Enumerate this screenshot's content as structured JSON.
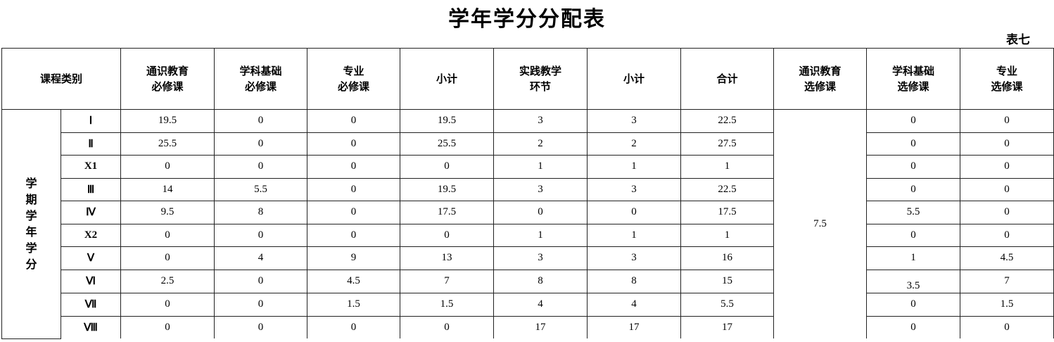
{
  "title": "学年学分分配表",
  "table_tag": "表七",
  "header": {
    "category": "课程类别",
    "columns": [
      [
        "通识教育",
        "必修课"
      ],
      [
        "学科基础",
        "必修课"
      ],
      [
        "专业",
        "必修课"
      ],
      [
        "小计"
      ],
      [
        "实践教学",
        "环节"
      ],
      [
        "小计"
      ],
      [
        "合计"
      ],
      [
        "通识教育",
        "选修课"
      ],
      [
        "学科基础",
        "选修课"
      ],
      [
        "专业",
        "选修课"
      ]
    ]
  },
  "side_label": [
    "学",
    "期",
    "学",
    "年",
    "学",
    "分"
  ],
  "general_elective_total": "7.5",
  "rows": [
    {
      "term": "Ⅰ",
      "values": [
        "19.5",
        "0",
        "0",
        "19.5",
        "3",
        "3",
        "22.5"
      ],
      "electives": [
        "0",
        "0"
      ]
    },
    {
      "term": "Ⅱ",
      "values": [
        "25.5",
        "0",
        "0",
        "25.5",
        "2",
        "2",
        "27.5"
      ],
      "electives": [
        "0",
        "0"
      ]
    },
    {
      "term": "X1",
      "values": [
        "0",
        "0",
        "0",
        "0",
        "1",
        "1",
        "1"
      ],
      "electives": [
        "0",
        "0"
      ]
    },
    {
      "term": "Ⅲ",
      "values": [
        "14",
        "5.5",
        "0",
        "19.5",
        "3",
        "3",
        "22.5"
      ],
      "electives": [
        "0",
        "0"
      ]
    },
    {
      "term": "Ⅳ",
      "values": [
        "9.5",
        "8",
        "0",
        "17.5",
        "0",
        "0",
        "17.5"
      ],
      "electives": [
        "5.5",
        "0"
      ]
    },
    {
      "term": "X2",
      "values": [
        "0",
        "0",
        "0",
        "0",
        "1",
        "1",
        "1"
      ],
      "electives": [
        "0",
        "0"
      ]
    },
    {
      "term": "Ⅴ",
      "values": [
        "0",
        "4",
        "9",
        "13",
        "3",
        "3",
        "16"
      ],
      "electives": [
        "1",
        "4.5"
      ]
    },
    {
      "term": "Ⅵ",
      "values": [
        "2.5",
        "0",
        "4.5",
        "7",
        "8",
        "8",
        "15"
      ],
      "electives": [
        "3.5",
        "7"
      ]
    },
    {
      "term": "Ⅶ",
      "values": [
        "0",
        "0",
        "1.5",
        "1.5",
        "4",
        "4",
        "5.5"
      ],
      "electives": [
        "0",
        "1.5"
      ]
    },
    {
      "term": "Ⅷ",
      "values": [
        "0",
        "0",
        "0",
        "0",
        "17",
        "17",
        "17"
      ],
      "electives": [
        "0",
        "0"
      ]
    }
  ]
}
